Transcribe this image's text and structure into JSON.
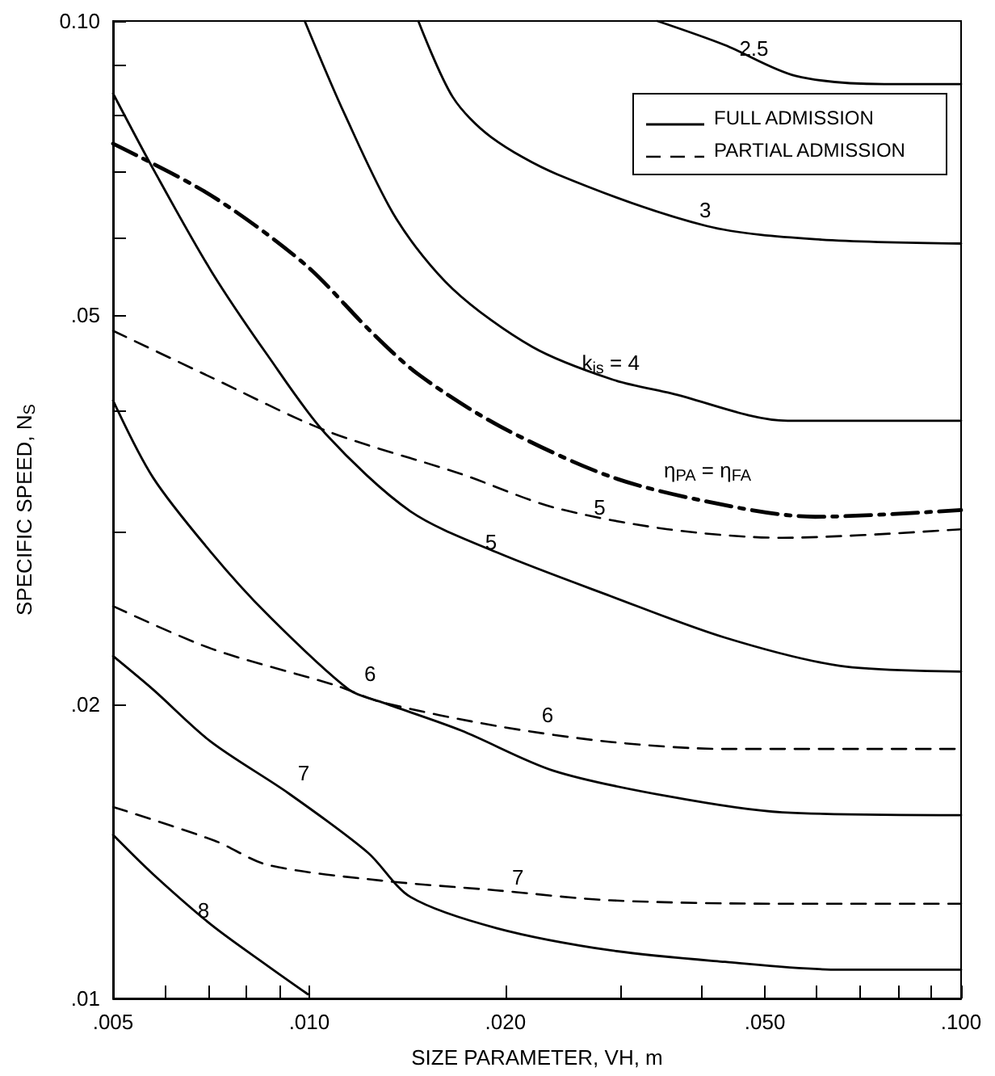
{
  "chart_data": {
    "type": "line",
    "xlabel": "SIZE PARAMETER, VH, m",
    "ylabel": "SPECIFIC SPEED, N$_{S}$",
    "log": "xy",
    "grid": false,
    "legend": "top right",
    "marker": "none",
    "xlim": [
      0.005,
      0.1
    ],
    "ylim": [
      0.01,
      0.1
    ],
    "xticks": [
      {
        "value": 0.005,
        "label": ".005"
      },
      {
        "value": 0.006,
        "label": null
      },
      {
        "value": 0.007,
        "label": null
      },
      {
        "value": 0.008,
        "label": null
      },
      {
        "value": 0.009,
        "label": null
      },
      {
        "value": 0.01,
        "label": ".010"
      },
      {
        "value": 0.02,
        "label": ".020"
      },
      {
        "value": 0.03,
        "label": null
      },
      {
        "value": 0.04,
        "label": null
      },
      {
        "value": 0.05,
        "label": ".050"
      },
      {
        "value": 0.06,
        "label": null
      },
      {
        "value": 0.07,
        "label": null
      },
      {
        "value": 0.08,
        "label": null
      },
      {
        "value": 0.09,
        "label": null
      },
      {
        "value": 0.1,
        "label": ".100"
      }
    ],
    "yticks": [
      {
        "value": 0.01,
        "label": ".01"
      },
      {
        "value": 0.02,
        "label": ".02"
      },
      {
        "value": 0.03,
        "label": null
      },
      {
        "value": 0.04,
        "label": null
      },
      {
        "value": 0.05,
        "label": ".05"
      },
      {
        "value": 0.06,
        "label": null
      },
      {
        "value": 0.07,
        "label": null
      },
      {
        "value": 0.08,
        "label": null
      },
      {
        "value": 0.09,
        "label": null
      },
      {
        "value": 0.1,
        "label": "0.10"
      }
    ],
    "series": [
      {
        "name": "FULL ADMISSION",
        "color": "#000000",
        "line_style": "solid",
        "x": [
          0.0342,
          0.0434,
          0.0557,
          0.0762,
          0.1
        ],
        "values": [
          0.1,
          0.0945,
          0.0879,
          0.0862,
          0.0862
        ]
      },
      {
        "color": "#000000",
        "line_style": "solid",
        "x": [
          0.0147,
          0.0166,
          0.019,
          0.024,
          0.0407,
          0.0597,
          0.1
        ],
        "values": [
          0.1,
          0.0836,
          0.0761,
          0.0697,
          0.0617,
          0.0598,
          0.0592
        ]
      },
      {
        "color": "#000000",
        "line_style": "solid",
        "x": [
          0.00984,
          0.01134,
          0.01361,
          0.0166,
          0.022,
          0.0291,
          0.0359,
          0.0542,
          0.1
        ],
        "values": [
          0.1,
          0.0802,
          0.0627,
          0.0532,
          0.0464,
          0.043,
          0.0416,
          0.039,
          0.039
        ]
      },
      {
        "color": "#000000",
        "line_style": "dashdot",
        "x": [
          0.005,
          0.00707,
          0.00984,
          0.0124,
          0.0147,
          0.0196,
          0.0293,
          0.0441,
          0.0597,
          0.1
        ],
        "values": [
          0.0749,
          0.0663,
          0.0564,
          0.0482,
          0.0435,
          0.0385,
          0.0341,
          0.0319,
          0.0311,
          0.0316
        ]
      },
      {
        "color": "#000000",
        "line_style": "solid",
        "x": [
          0.005,
          0.0058,
          0.00707,
          0.00863,
          0.0106,
          0.0143,
          0.0194,
          0.029,
          0.0434,
          0.065,
          0.1
        ],
        "values": [
          0.0843,
          0.07,
          0.0555,
          0.0455,
          0.0378,
          0.0315,
          0.0286,
          0.0258,
          0.0234,
          0.0219,
          0.0216
        ]
      },
      {
        "name": "PARTIAL ADMISSION",
        "color": "#000000",
        "line_style": "dashed",
        "x": [
          0.005,
          0.00707,
          0.0106,
          0.0171,
          0.0237,
          0.0355,
          0.0532,
          0.1
        ],
        "values": [
          0.0482,
          0.0432,
          0.0381,
          0.0344,
          0.0318,
          0.0302,
          0.0296,
          0.0302
        ]
      },
      {
        "color": "#000000",
        "line_style": "solid",
        "x": [
          0.005,
          0.00576,
          0.00707,
          0.00863,
          0.0115,
          0.0129,
          0.0171,
          0.0237,
          0.0355,
          0.0532,
          0.1
        ],
        "values": [
          0.0409,
          0.0341,
          0.0286,
          0.0247,
          0.0207,
          0.0201,
          0.0188,
          0.0171,
          0.0161,
          0.0155,
          0.0154
        ]
      },
      {
        "color": "#000000",
        "line_style": "dashed",
        "x": [
          0.005,
          0.00707,
          0.011,
          0.0129,
          0.0194,
          0.029,
          0.0434,
          0.1
        ],
        "values": [
          0.0252,
          0.0228,
          0.0209,
          0.0201,
          0.019,
          0.0183,
          0.018,
          0.018
        ]
      },
      {
        "color": "#000000",
        "line_style": "solid",
        "x": [
          0.005,
          0.00576,
          0.00707,
          0.00931,
          0.0123,
          0.0143,
          0.0194,
          0.029,
          0.0434,
          0.065,
          0.1
        ],
        "values": [
          0.0224,
          0.0207,
          0.0183,
          0.0162,
          0.0141,
          0.0127,
          0.0118,
          0.0112,
          0.0109,
          0.0107,
          0.0107
        ]
      },
      {
        "color": "#000000",
        "line_style": "dashed",
        "x": [
          0.005,
          0.00716,
          0.00863,
          0.0129,
          0.0194,
          0.029,
          0.0532,
          0.1
        ],
        "values": [
          0.0157,
          0.0145,
          0.0137,
          0.0132,
          0.0129,
          0.0126,
          0.0125,
          0.0125
        ]
      },
      {
        "color": "#000000",
        "line_style": "solid",
        "x": [
          0.005,
          0.00576,
          0.00707,
          0.00863,
          0.00995
        ],
        "values": [
          0.0147,
          0.0134,
          0.0119,
          0.0108,
          0.0101
        ]
      }
    ],
    "annotations": [
      {
        "text": "2.5",
        "x": 0.0481,
        "y": 0.0937
      },
      {
        "text": "3",
        "x": 0.0405,
        "y": 0.0641
      },
      {
        "text": "k$_{is}$ = 4",
        "x": 0.029,
        "y": 0.0447
      },
      "η$_{PA}$ = η$_{FA}$",
      {
        "text": "5",
        "x": 0.0279,
        "y": 0.0318
      },
      {
        "text": "5",
        "x": 0.019,
        "y": 0.0293
      },
      {
        "text": "6",
        "x": 0.0124,
        "y": 0.0215
      },
      {
        "text": "6",
        "x": 0.0232,
        "y": 0.0195
      },
      {
        "text": "7",
        "x": 0.0098,
        "y": 0.017
      },
      {
        "text": "7",
        "x": 0.0209,
        "y": 0.0133
      },
      {
        "text": "8",
        "x": 0.00688,
        "y": 0.0123
      }
    ]
  }
}
